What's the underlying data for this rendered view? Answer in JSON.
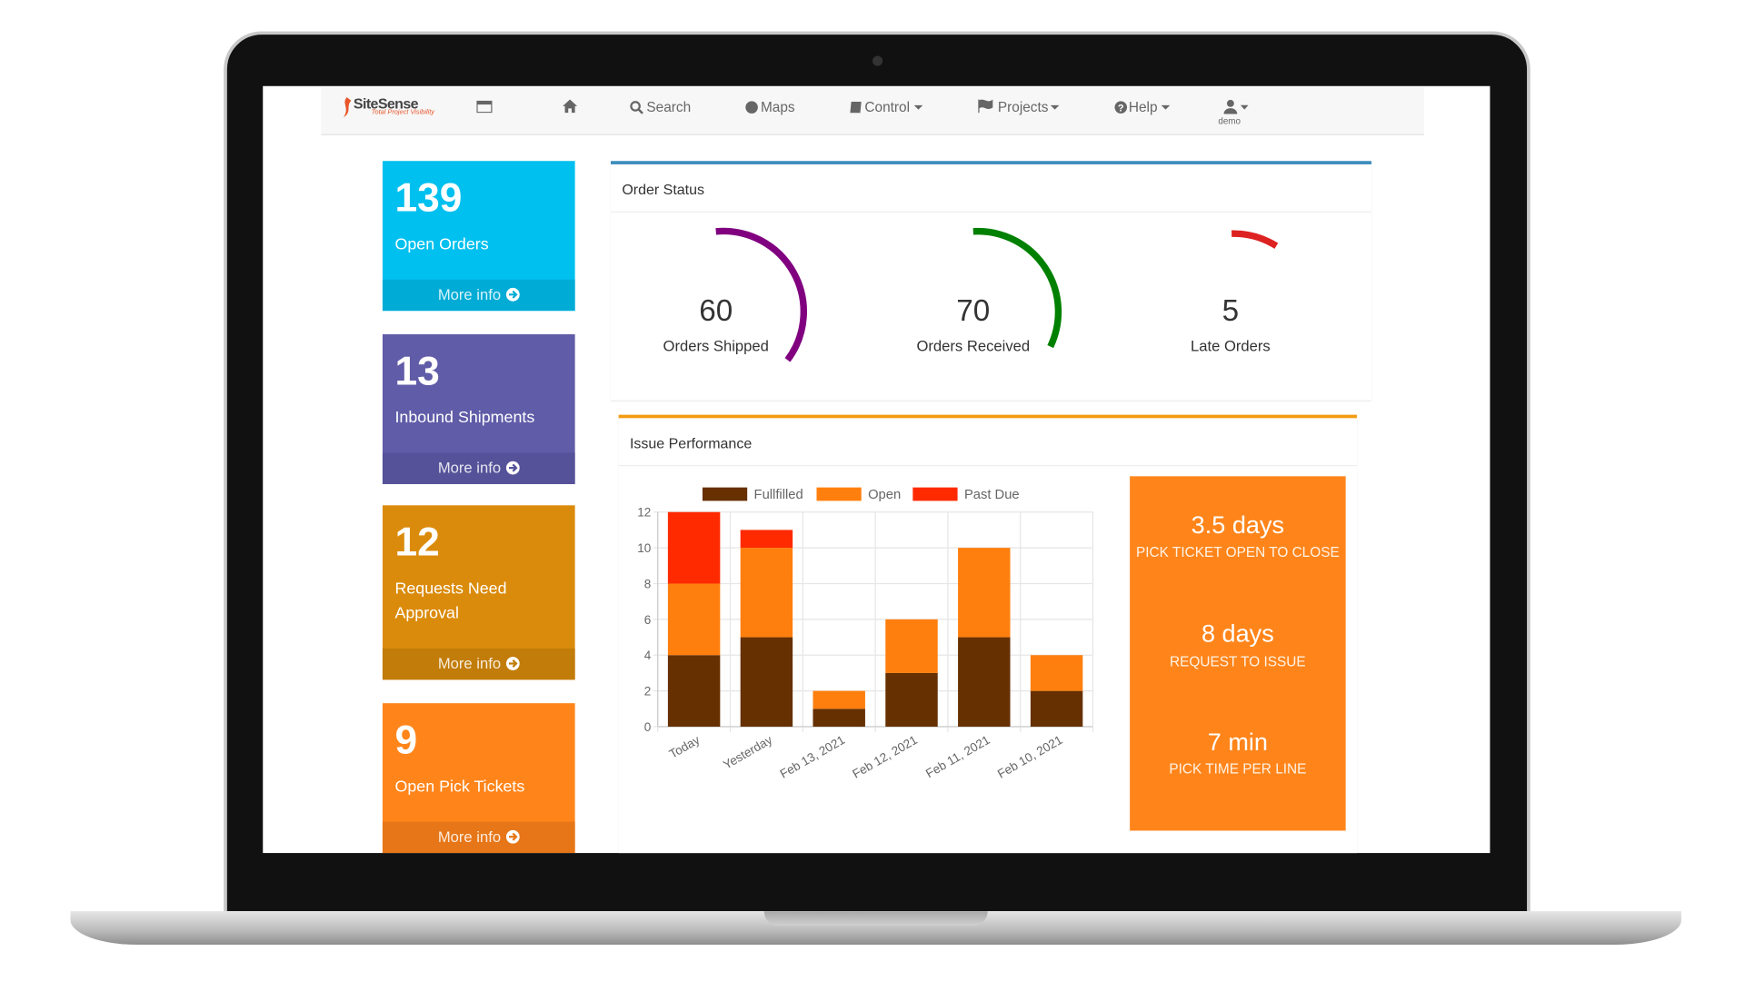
{
  "nav": {
    "brand": "SiteSense",
    "tagline": "Total Project Visibility",
    "items": [
      "Search",
      "Maps",
      "Control",
      "Projects",
      "Help"
    ],
    "user": "demo"
  },
  "stat_boxes": [
    {
      "value": 139,
      "label": "Open Orders",
      "link": "More info"
    },
    {
      "value": 13,
      "label": "Inbound Shipments",
      "link": "More info"
    },
    {
      "value": 12,
      "label": "Requests Need Approval",
      "link": "More info"
    },
    {
      "value": 9,
      "label": "Open Pick Tickets",
      "link": "More info"
    }
  ],
  "order_status": {
    "title": "Order Status",
    "gauges": [
      {
        "value": 60,
        "label": "Orders Shipped"
      },
      {
        "value": 70,
        "label": "Orders Received"
      },
      {
        "value": 5,
        "label": "Late Orders"
      }
    ]
  },
  "issue_performance": {
    "title": "Issue Performance",
    "kpis": [
      {
        "value": "3.5 days",
        "label": "PICK TICKET OPEN TO CLOSE"
      },
      {
        "value": "8 days",
        "label": "REQUEST TO ISSUE"
      },
      {
        "value": "7 min",
        "label": "PICK TIME PER LINE"
      }
    ]
  },
  "chart_data": {
    "type": "stacked_bar",
    "categories": [
      "Today",
      "Yesterday",
      "Feb 13, 2021",
      "Feb 12, 2021",
      "Feb 11, 2021",
      "Feb 10, 2021"
    ],
    "series": [
      {
        "name": "Fullfilled",
        "color": "#663000",
        "values": [
          4,
          5,
          1,
          3,
          5,
          2
        ]
      },
      {
        "name": "Open",
        "color": "#ff7f0e",
        "values": [
          4,
          5,
          1,
          3,
          5,
          2
        ]
      },
      {
        "name": "Past Due",
        "color": "#ff2a00",
        "values": [
          4,
          1,
          0,
          0,
          0,
          0
        ]
      }
    ],
    "ylim": [
      0,
      12
    ],
    "yticks": [
      0,
      2,
      4,
      6,
      8,
      10,
      12
    ],
    "grid": true,
    "legend": "top"
  }
}
